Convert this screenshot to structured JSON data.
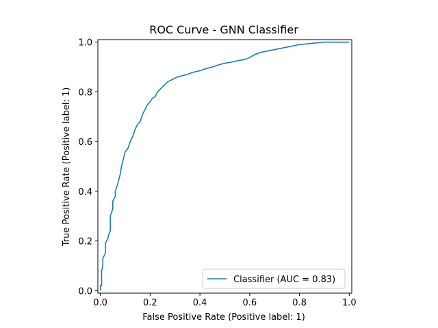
{
  "chart_data": {
    "type": "line",
    "title": "ROC Curve - GNN Classifier",
    "xlabel": "False Positive Rate (Positive label: 1)",
    "ylabel": "True Positive Rate (Positive label: 1)",
    "xlim": [
      -0.01,
      1.01
    ],
    "ylim": [
      -0.01,
      1.01
    ],
    "xticks": [
      0.0,
      0.2,
      0.4,
      0.6,
      0.8,
      1.0
    ],
    "yticks": [
      0.0,
      0.2,
      0.4,
      0.6,
      0.8,
      1.0
    ],
    "xtick_labels": [
      "0.0",
      "0.2",
      "0.4",
      "0.6",
      "0.8",
      "1.0"
    ],
    "ytick_labels": [
      "0.0",
      "0.2",
      "0.4",
      "0.6",
      "0.8",
      "1.0"
    ],
    "grid": false,
    "legend_position": "lower-right",
    "series": [
      {
        "name": "Classifier (AUC = 0.83)",
        "color": "#1f77b4",
        "x": [
          0.0,
          0.0,
          0.005,
          0.005,
          0.01,
          0.01,
          0.02,
          0.02,
          0.03,
          0.035,
          0.04,
          0.04,
          0.05,
          0.05,
          0.055,
          0.06,
          0.06,
          0.07,
          0.08,
          0.085,
          0.09,
          0.1,
          0.11,
          0.12,
          0.13,
          0.14,
          0.15,
          0.16,
          0.17,
          0.18,
          0.19,
          0.2,
          0.21,
          0.22,
          0.23,
          0.24,
          0.25,
          0.27,
          0.29,
          0.31,
          0.33,
          0.35,
          0.37,
          0.4,
          0.42,
          0.45,
          0.48,
          0.5,
          0.53,
          0.55,
          0.58,
          0.6,
          0.62,
          0.65,
          0.7,
          0.75,
          0.8,
          0.85,
          0.9,
          0.95,
          1.0
        ],
        "y": [
          0.0,
          0.02,
          0.02,
          0.08,
          0.1,
          0.13,
          0.15,
          0.19,
          0.21,
          0.23,
          0.24,
          0.3,
          0.33,
          0.36,
          0.37,
          0.38,
          0.4,
          0.43,
          0.47,
          0.5,
          0.52,
          0.56,
          0.57,
          0.6,
          0.62,
          0.65,
          0.67,
          0.68,
          0.71,
          0.73,
          0.75,
          0.76,
          0.775,
          0.78,
          0.8,
          0.81,
          0.82,
          0.84,
          0.85,
          0.86,
          0.865,
          0.87,
          0.878,
          0.885,
          0.892,
          0.9,
          0.91,
          0.915,
          0.92,
          0.925,
          0.93,
          0.938,
          0.95,
          0.96,
          0.97,
          0.98,
          0.99,
          0.995,
          1.0,
          1.0,
          1.0
        ]
      }
    ]
  }
}
